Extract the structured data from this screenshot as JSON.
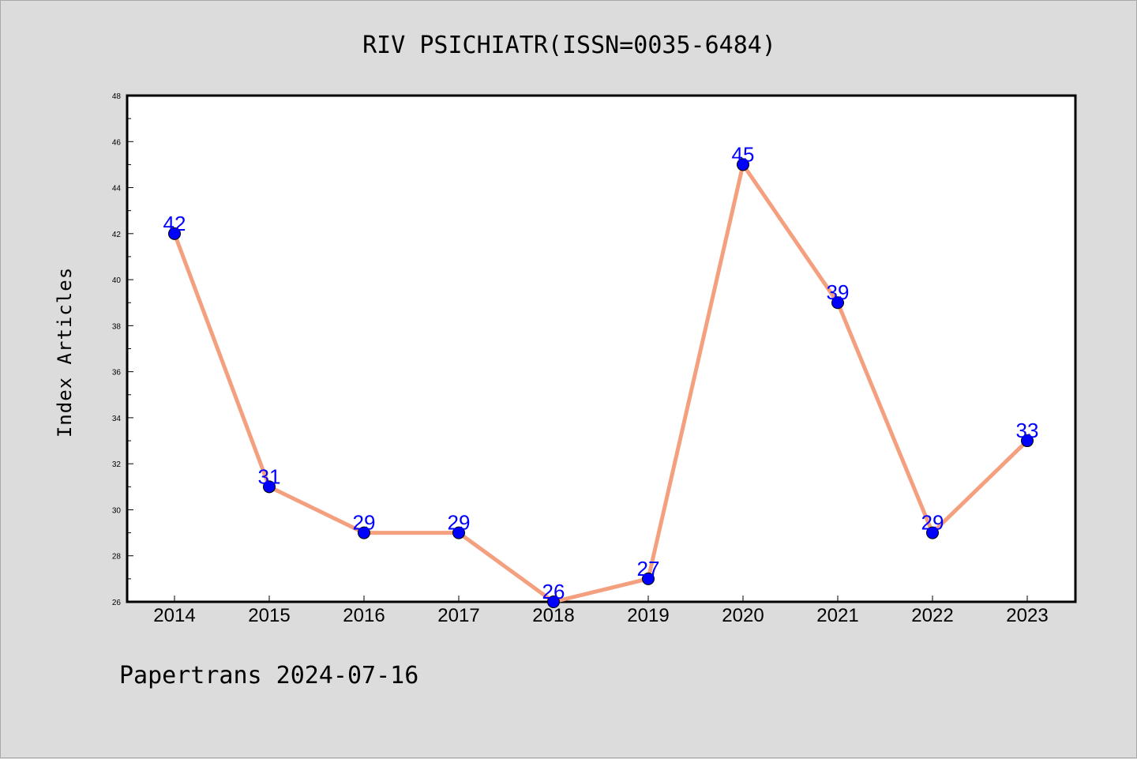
{
  "chart_data": {
    "type": "line",
    "title": "RIV PSICHIATR(ISSN=0035-6484)",
    "ylabel": "Index Articles",
    "xlabel": "",
    "categories": [
      "2014",
      "2015",
      "2016",
      "2017",
      "2018",
      "2019",
      "2020",
      "2021",
      "2022",
      "2023"
    ],
    "values": [
      42,
      31,
      29,
      29,
      26,
      27,
      45,
      39,
      29,
      33
    ],
    "ylim": [
      26,
      48
    ],
    "yticks": [
      "26",
      "28",
      "30",
      "32",
      "34",
      "36",
      "38",
      "40",
      "42",
      "44",
      "46",
      "48"
    ],
    "data_labels": [
      "42",
      "31",
      "29",
      "29",
      "26",
      "27",
      "45",
      "39",
      "29",
      "33"
    ],
    "grid": false,
    "line_color": "#f4a07f",
    "marker_color": "#0000ff",
    "label_color": "#0000ff"
  },
  "footer": "Papertrans 2024-07-16"
}
